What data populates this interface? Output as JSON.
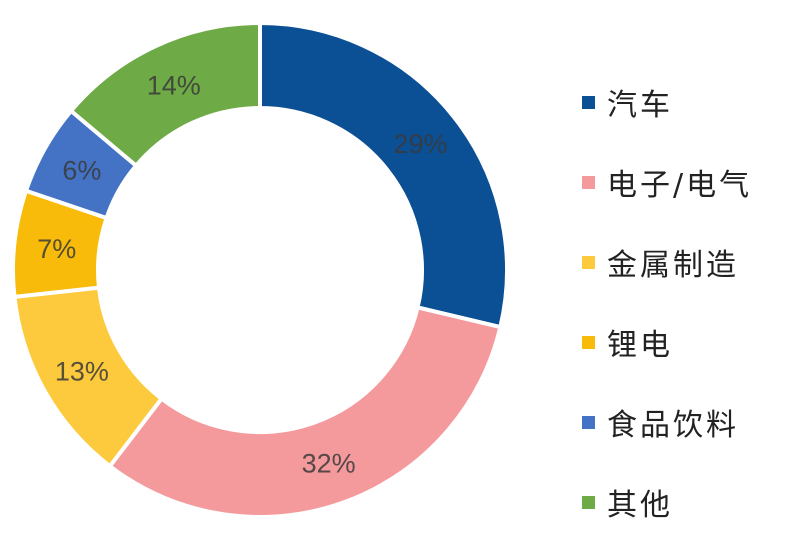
{
  "chart_data": {
    "type": "pie",
    "donut": true,
    "start": "12 o'clock, clockwise",
    "categories": [
      "汽车",
      "电子/电气",
      "金属制造",
      "锂电",
      "食品饮料",
      "其他"
    ],
    "values": [
      29,
      32,
      13,
      7,
      6,
      14
    ],
    "labels": [
      "29%",
      "32%",
      "13%",
      "7%",
      "6%",
      "14%"
    ],
    "colors": [
      "#0b4f94",
      "#f4999c",
      "#fcca3c",
      "#f8bb0a",
      "#4473c5",
      "#6eaa45"
    ],
    "legend": "right"
  }
}
